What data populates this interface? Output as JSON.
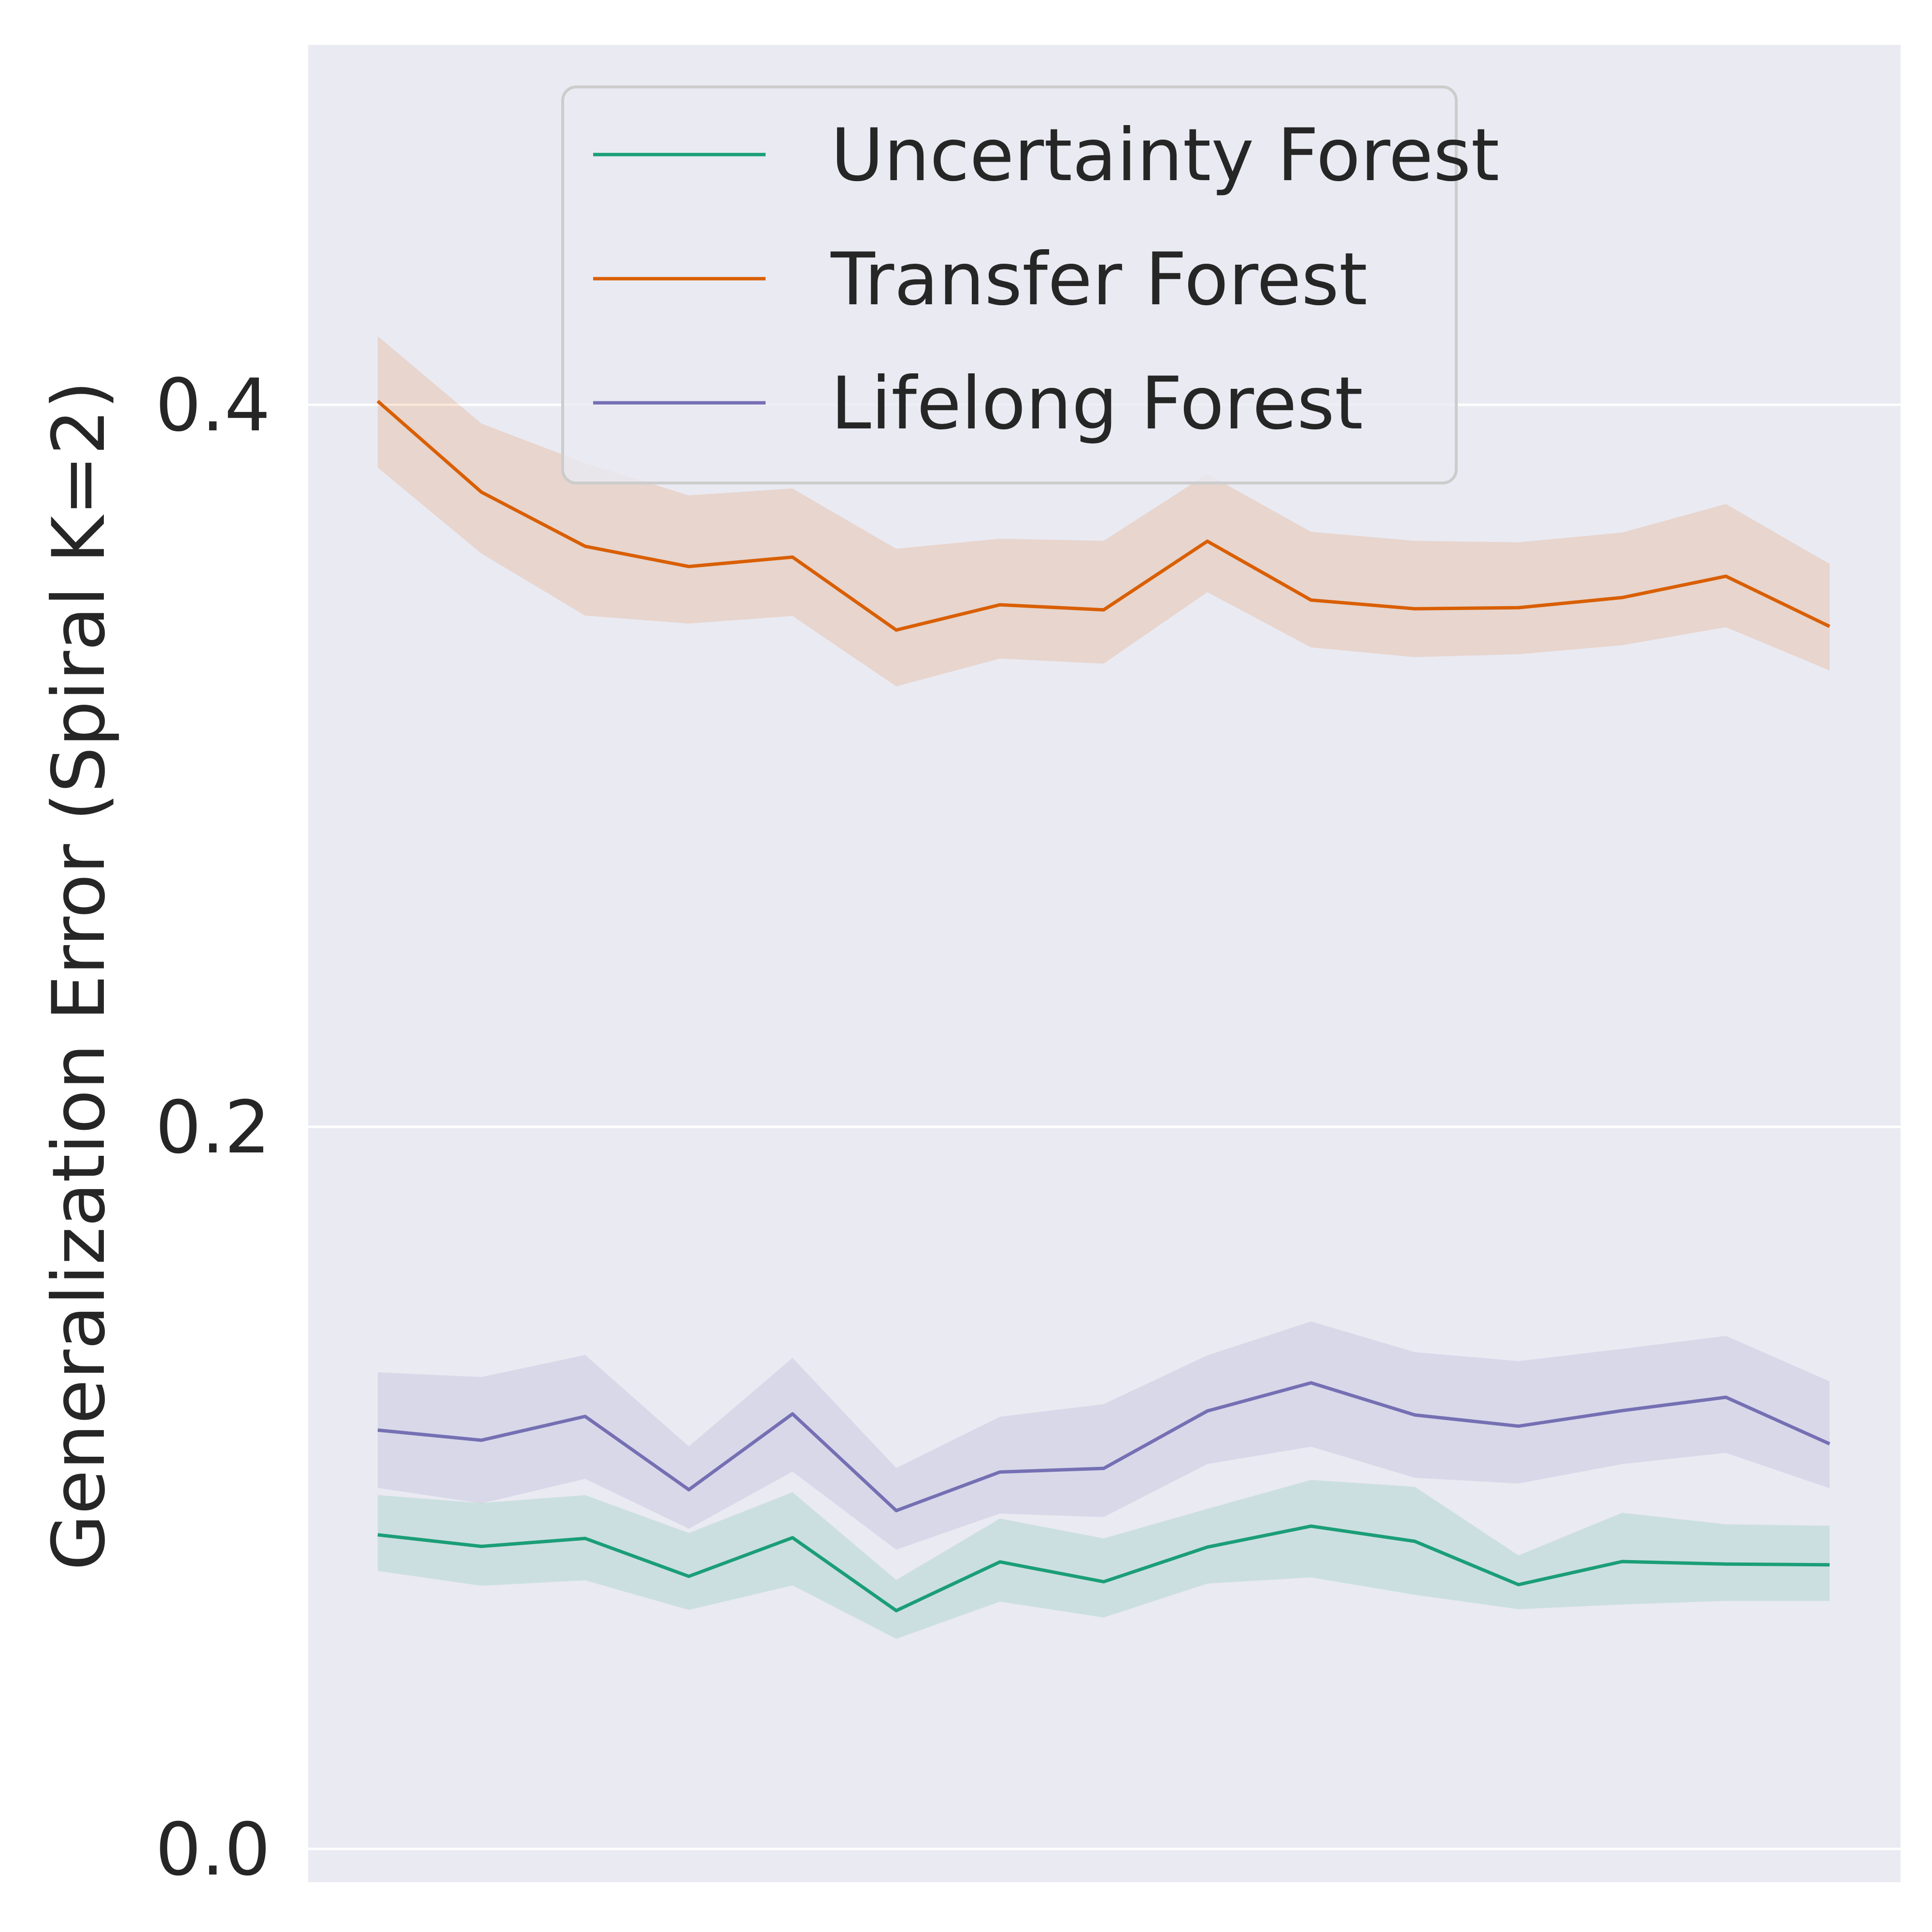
{
  "chart_data": {
    "type": "line",
    "title": "",
    "xlabel": "",
    "ylabel": "Generalization Error (Spiral K=2)",
    "ylim": [
      -0.002,
      0.5
    ],
    "x": [
      1,
      2,
      3,
      4,
      5,
      6,
      7,
      8,
      9,
      10,
      11,
      12,
      13,
      14,
      15
    ],
    "y_ticks": [
      "0.0",
      "0.2",
      "0.4"
    ],
    "y_tick_values": [
      0.0,
      0.2,
      0.4
    ],
    "grid": true,
    "legend_position": "upper-center",
    "background_color": "#eaeaf2",
    "grid_color": "#ffffff",
    "series": [
      {
        "name": "Uncertainty Forest",
        "color": "#1b9e77",
        "values": [
          0.087,
          0.0838,
          0.086,
          0.0755,
          0.0862,
          0.066,
          0.0795,
          0.074,
          0.0836,
          0.0894,
          0.0852,
          0.0732,
          0.0796,
          0.0789,
          0.0787
        ],
        "upper": [
          0.098,
          0.0958,
          0.098,
          0.0875,
          0.0988,
          0.0745,
          0.0915,
          0.086,
          0.0942,
          0.1022,
          0.1003,
          0.0813,
          0.0931,
          0.0899,
          0.0895
        ],
        "lower": [
          0.077,
          0.0729,
          0.0744,
          0.0662,
          0.073,
          0.0582,
          0.0685,
          0.0641,
          0.0735,
          0.0752,
          0.0704,
          0.0664,
          0.0677,
          0.0687,
          0.0687
        ]
      },
      {
        "name": "Transfer Forest",
        "color": "#d95f02",
        "values": [
          0.401,
          0.3758,
          0.3608,
          0.3552,
          0.3578,
          0.3376,
          0.3446,
          0.3432,
          0.3622,
          0.3459,
          0.3435,
          0.3438,
          0.3466,
          0.3525,
          0.3386
        ],
        "upper": [
          0.419,
          0.3948,
          0.3838,
          0.3749,
          0.3768,
          0.3601,
          0.3629,
          0.3623,
          0.3808,
          0.3648,
          0.3623,
          0.3619,
          0.3646,
          0.3725,
          0.3559
        ],
        "lower": [
          0.3826,
          0.3588,
          0.3416,
          0.3394,
          0.3415,
          0.322,
          0.3297,
          0.3283,
          0.3481,
          0.3328,
          0.3301,
          0.3309,
          0.3334,
          0.3384,
          0.3264
        ]
      },
      {
        "name": "Lifelong Forest",
        "color": "#7570b3",
        "values": [
          0.116,
          0.1132,
          0.1198,
          0.0995,
          0.1205,
          0.0937,
          0.1044,
          0.1054,
          0.1213,
          0.1291,
          0.1202,
          0.1171,
          0.1214,
          0.1251,
          0.1122
        ],
        "upper": [
          0.132,
          0.1307,
          0.1368,
          0.1115,
          0.136,
          0.1055,
          0.1197,
          0.1232,
          0.1367,
          0.1461,
          0.1376,
          0.1351,
          0.1385,
          0.1421,
          0.1295
        ],
        "lower": [
          0.1,
          0.0957,
          0.1025,
          0.0887,
          0.1045,
          0.0829,
          0.0929,
          0.0919,
          0.1066,
          0.1114,
          0.1028,
          0.1012,
          0.1066,
          0.1097,
          0.0999
        ]
      }
    ]
  }
}
